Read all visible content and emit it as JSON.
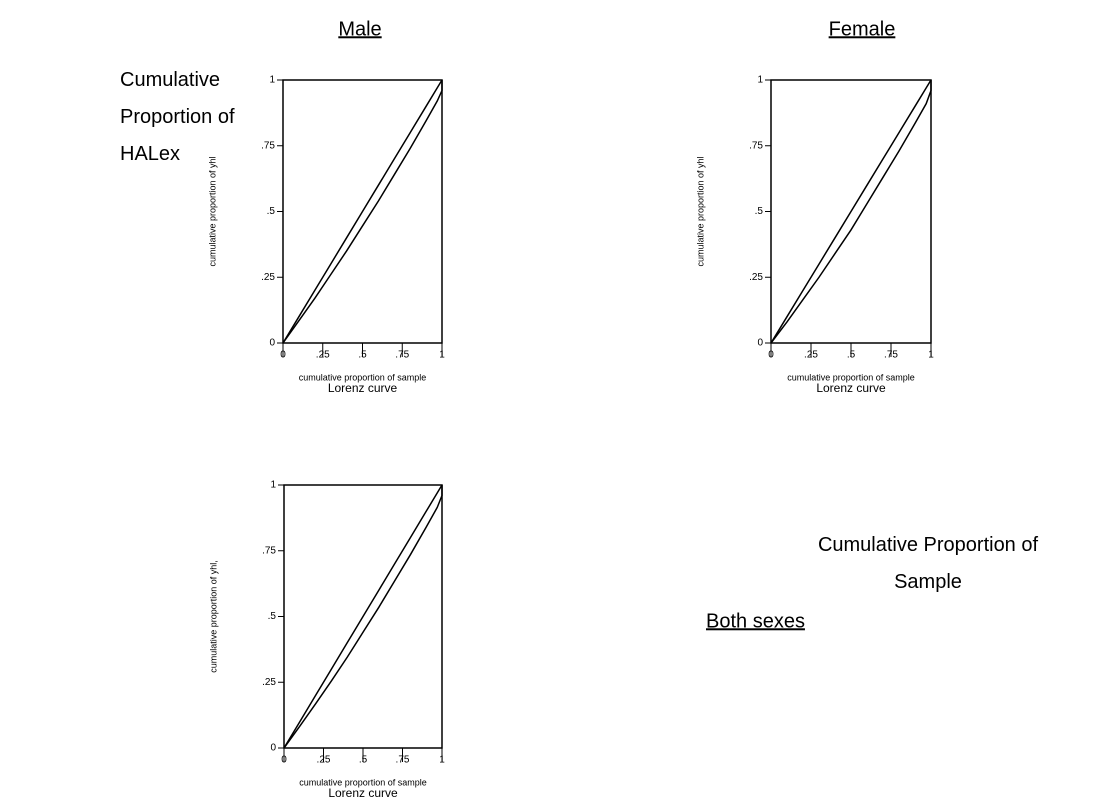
{
  "row_label": "Cumulative Proportion of HALex",
  "column_label": "Cumulative Proportion of Sample",
  "chart_data": [
    {
      "type": "line",
      "title": "Male",
      "xlabel": "cumulative proportion of sample",
      "ylabel": "cumulative proportion of yhl",
      "caption": "Lorenz curve",
      "x": [
        0,
        0.1,
        0.2,
        0.3,
        0.4,
        0.5,
        0.6,
        0.7,
        0.8,
        0.9,
        0.97,
        1,
        1
      ],
      "series": [
        {
          "color": "#000000",
          "values": [
            0,
            0.1,
            0.2,
            0.3,
            0.4,
            0.5,
            0.6,
            0.7,
            0.8,
            0.9,
            0.97,
            1,
            1
          ]
        },
        {
          "color": "#000000",
          "values": [
            0,
            0.085,
            0.17,
            0.26,
            0.35,
            0.445,
            0.54,
            0.64,
            0.74,
            0.845,
            0.92,
            0.96,
            1
          ]
        }
      ],
      "xlim": [
        0,
        1
      ],
      "ylim": [
        0,
        1
      ],
      "xticks": [
        0,
        {
          "value": 0.25,
          "label": ".25"
        },
        {
          "value": 0.5,
          "label": ".5"
        },
        {
          "value": 0.75,
          "label": ".75"
        },
        1
      ],
      "yticks": [
        0,
        {
          "value": 0.25,
          "label": ".25"
        },
        {
          "value": 0.5,
          "label": ".5"
        },
        {
          "value": 0.75,
          "label": ".75"
        },
        1
      ]
    },
    {
      "type": "line",
      "title": "Female",
      "xlabel": "cumulative proportion of sample",
      "ylabel": "cumulative proportion of yhl",
      "caption": "Lorenz curve",
      "x": [
        0,
        0.1,
        0.2,
        0.3,
        0.4,
        0.5,
        0.6,
        0.7,
        0.8,
        0.9,
        0.97,
        1,
        1
      ],
      "series": [
        {
          "color": "#000000",
          "values": [
            0,
            0.1,
            0.2,
            0.3,
            0.4,
            0.5,
            0.6,
            0.7,
            0.8,
            0.9,
            0.97,
            1,
            1
          ]
        },
        {
          "color": "#000000",
          "values": [
            0,
            0.08,
            0.165,
            0.25,
            0.34,
            0.43,
            0.53,
            0.63,
            0.73,
            0.835,
            0.91,
            0.96,
            1
          ]
        }
      ],
      "xlim": [
        0,
        1
      ],
      "ylim": [
        0,
        1
      ],
      "xticks": [
        0,
        {
          "value": 0.25,
          "label": ".25"
        },
        {
          "value": 0.5,
          "label": ".5"
        },
        {
          "value": 0.75,
          "label": ".75"
        },
        1
      ],
      "yticks": [
        0,
        {
          "value": 0.25,
          "label": ".25"
        },
        {
          "value": 0.5,
          "label": ".5"
        },
        {
          "value": 0.75,
          "label": ".75"
        },
        1
      ]
    },
    {
      "type": "line",
      "title": "Both sexes",
      "xlabel": "cumulative proportion of sample",
      "ylabel": "cumulative proportion of yhl,",
      "caption": "Lorenz curve",
      "x": [
        0,
        0.1,
        0.2,
        0.3,
        0.4,
        0.5,
        0.6,
        0.7,
        0.8,
        0.9,
        0.97,
        1,
        1
      ],
      "series": [
        {
          "color": "#000000",
          "values": [
            0,
            0.1,
            0.2,
            0.3,
            0.4,
            0.5,
            0.6,
            0.7,
            0.8,
            0.9,
            0.97,
            1,
            1
          ]
        },
        {
          "color": "#000000",
          "values": [
            0,
            0.083,
            0.168,
            0.255,
            0.345,
            0.44,
            0.535,
            0.635,
            0.735,
            0.84,
            0.915,
            0.96,
            1
          ]
        }
      ],
      "xlim": [
        0,
        1
      ],
      "ylim": [
        0,
        1
      ],
      "xticks": [
        0,
        {
          "value": 0.25,
          "label": ".25"
        },
        {
          "value": 0.5,
          "label": ".5"
        },
        {
          "value": 0.75,
          "label": ".75"
        },
        1
      ],
      "yticks": [
        0,
        {
          "value": 0.25,
          "label": ".25"
        },
        {
          "value": 0.5,
          "label": ".5"
        },
        {
          "value": 0.75,
          "label": ".75"
        },
        1
      ]
    }
  ]
}
